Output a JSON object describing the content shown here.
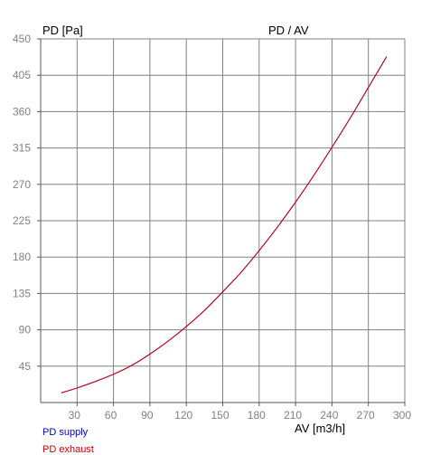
{
  "chart_data": {
    "type": "line",
    "title": "PD / AV",
    "xlabel": "AV [m3/h]",
    "ylabel": "PD [Pa]",
    "xlim": [
      0,
      300
    ],
    "ylim": [
      0,
      450
    ],
    "x_ticks": [
      30,
      60,
      90,
      120,
      150,
      180,
      210,
      240,
      270,
      300
    ],
    "y_ticks": [
      45,
      90,
      135,
      180,
      225,
      270,
      315,
      360,
      405,
      450
    ],
    "grid": true,
    "legend_position": "bottom-left",
    "series": [
      {
        "name": "PD supply",
        "color": "#0000cc",
        "x": [
          17,
          30,
          45,
          60,
          75,
          90,
          105,
          120,
          135,
          150,
          165,
          180,
          195,
          210,
          225,
          240,
          255,
          270,
          285
        ],
        "y": [
          12,
          18,
          26,
          35,
          46,
          60,
          76,
          94,
          114,
          137,
          161,
          188,
          217,
          248,
          281,
          316,
          352,
          390,
          428
        ]
      },
      {
        "name": "PD exhaust",
        "color": "#cc0000",
        "x": [
          17,
          30,
          45,
          60,
          75,
          90,
          105,
          120,
          135,
          150,
          165,
          180,
          195,
          210,
          225,
          240,
          255,
          270,
          285
        ],
        "y": [
          12,
          18,
          26,
          35,
          46,
          60,
          76,
          94,
          114,
          137,
          161,
          188,
          217,
          248,
          281,
          316,
          352,
          390,
          428
        ]
      }
    ]
  }
}
